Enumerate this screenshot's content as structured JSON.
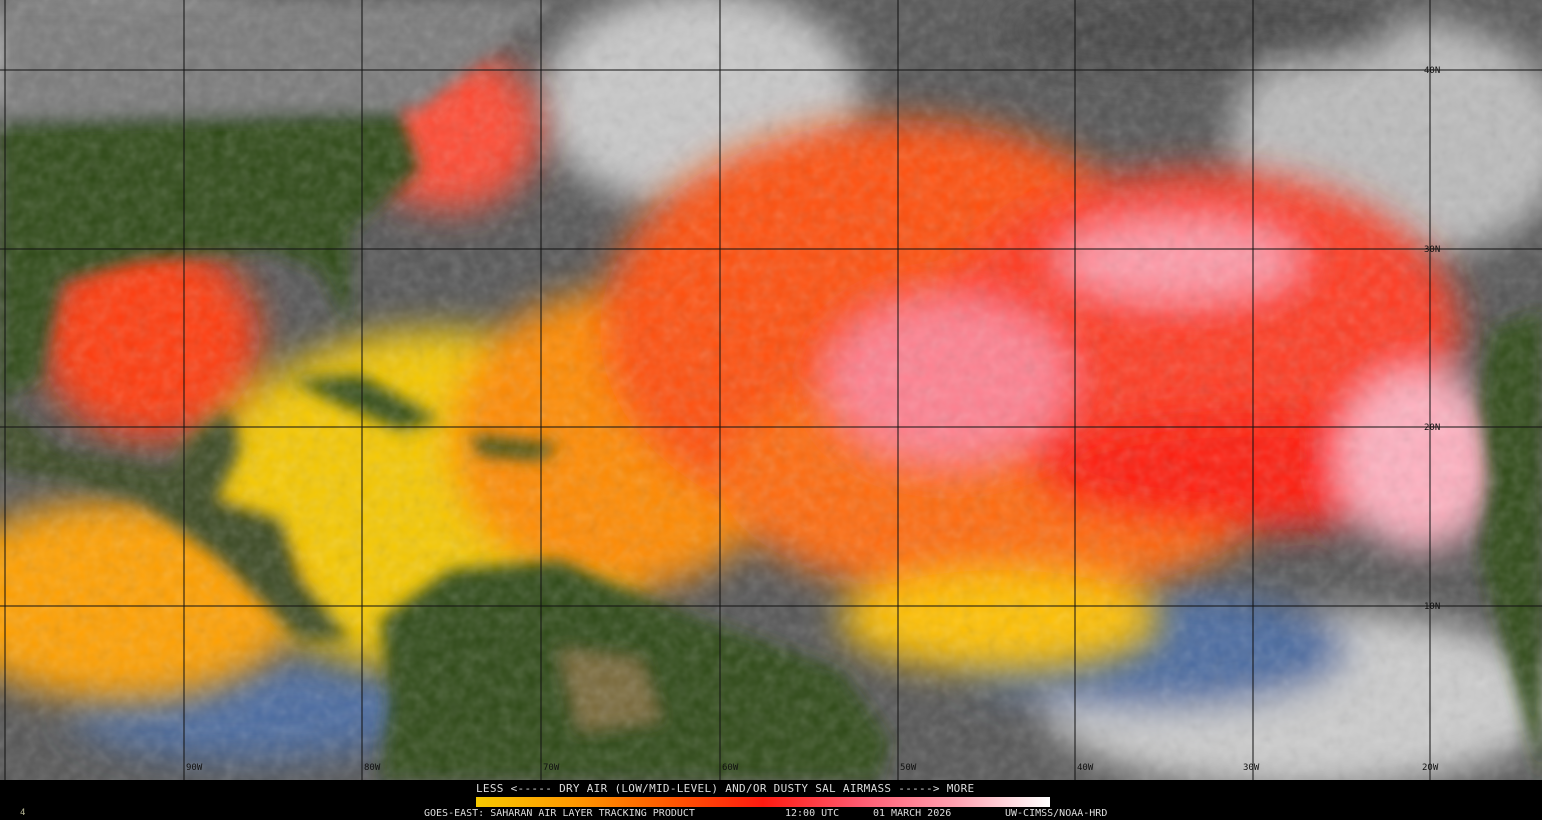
{
  "product": {
    "legend_title": "LESS <----- DRY AIR (LOW/MID-LEVEL) AND/OR DUSTY SAL AIRMASS -----> MORE",
    "satellite": "GOES-EAST: SAHARAN AIR LAYER TRACKING PRODUCT",
    "time": "12:00 UTC",
    "date": "01 MARCH 2026",
    "credit": "UW-CIMSS/NOAA-HRD",
    "corner_mark": "4"
  },
  "colorbar": {
    "colors": [
      "#f5c800",
      "#ff9a00",
      "#ff5a00",
      "#ff1a10",
      "#ff5a70",
      "#ffa0b0",
      "#ffffff"
    ],
    "low_label": "LESS",
    "high_label": "MORE"
  },
  "grid": {
    "latitudes": [
      "40N",
      "30N",
      "20N",
      "10N"
    ],
    "longitudes": [
      "90W",
      "80W",
      "70W",
      "60W",
      "50W",
      "40W",
      "30W",
      "20W"
    ]
  },
  "colors": {
    "land": "#2f4a18",
    "clouds": "#a8a8a8",
    "moist": "#4a6aa0",
    "dry_yellow": "#f5c800",
    "dry_orange": "#ff7a00",
    "dry_red": "#ff2a10",
    "dry_pink": "#ffa0b0"
  }
}
